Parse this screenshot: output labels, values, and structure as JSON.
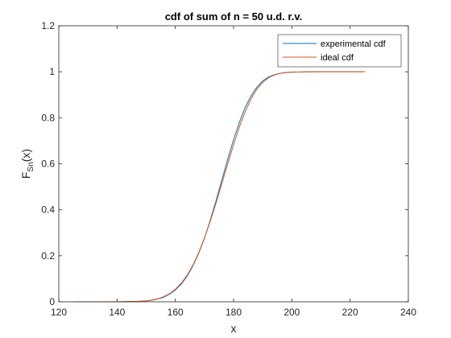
{
  "chart_data": {
    "type": "line",
    "title": "cdf of sum of n = 50 u.d. r.v.",
    "xlabel": "x",
    "ylabel": {
      "base": "F",
      "sub": "Sn",
      "arg": "(x)"
    },
    "xlim": [
      120,
      240
    ],
    "ylim": [
      0,
      1.2
    ],
    "xticks": [
      120,
      140,
      160,
      180,
      200,
      220,
      240
    ],
    "yticks": [
      0,
      0.2,
      0.4,
      0.6,
      0.8,
      1,
      1.2
    ],
    "xtick_labels": [
      "120",
      "140",
      "160",
      "180",
      "200",
      "220",
      "240"
    ],
    "ytick_labels": [
      "0",
      "0.2",
      "0.4",
      "0.6",
      "0.8",
      "1",
      "1.2"
    ],
    "grid": false,
    "legend_position": "top-right",
    "series": [
      {
        "name": "experimental cdf",
        "color": "#0072BD",
        "x": [
          125,
          140,
          145,
          148,
          150,
          152,
          154,
          156,
          158,
          160,
          162,
          164,
          166,
          168,
          170,
          172,
          174,
          176,
          178,
          180,
          182,
          184,
          186,
          188,
          190,
          192,
          194,
          196,
          198,
          200,
          205,
          210,
          215,
          220,
          225
        ],
        "y": [
          0,
          0.0002,
          0.001,
          0.002,
          0.004,
          0.007,
          0.012,
          0.02,
          0.033,
          0.051,
          0.076,
          0.11,
          0.155,
          0.21,
          0.275,
          0.355,
          0.44,
          0.53,
          0.62,
          0.705,
          0.78,
          0.845,
          0.895,
          0.933,
          0.96,
          0.977,
          0.987,
          0.993,
          0.996,
          0.998,
          0.9995,
          1,
          1,
          1,
          1
        ]
      },
      {
        "name": "ideal cdf",
        "color": "#D95319",
        "x": [
          125,
          140,
          145,
          148,
          150,
          152,
          154,
          156,
          158,
          160,
          162,
          164,
          166,
          168,
          170,
          172,
          174,
          176,
          178,
          180,
          182,
          184,
          186,
          188,
          190,
          192,
          194,
          196,
          198,
          200,
          205,
          210,
          215,
          220,
          225
        ],
        "y": [
          0,
          0.0003,
          0.0012,
          0.0025,
          0.0045,
          0.008,
          0.013,
          0.022,
          0.035,
          0.054,
          0.08,
          0.114,
          0.158,
          0.212,
          0.277,
          0.35,
          0.43,
          0.515,
          0.6,
          0.683,
          0.76,
          0.827,
          0.882,
          0.924,
          0.954,
          0.974,
          0.986,
          0.993,
          0.997,
          0.9985,
          0.9997,
          1,
          1,
          1,
          1
        ]
      }
    ]
  }
}
